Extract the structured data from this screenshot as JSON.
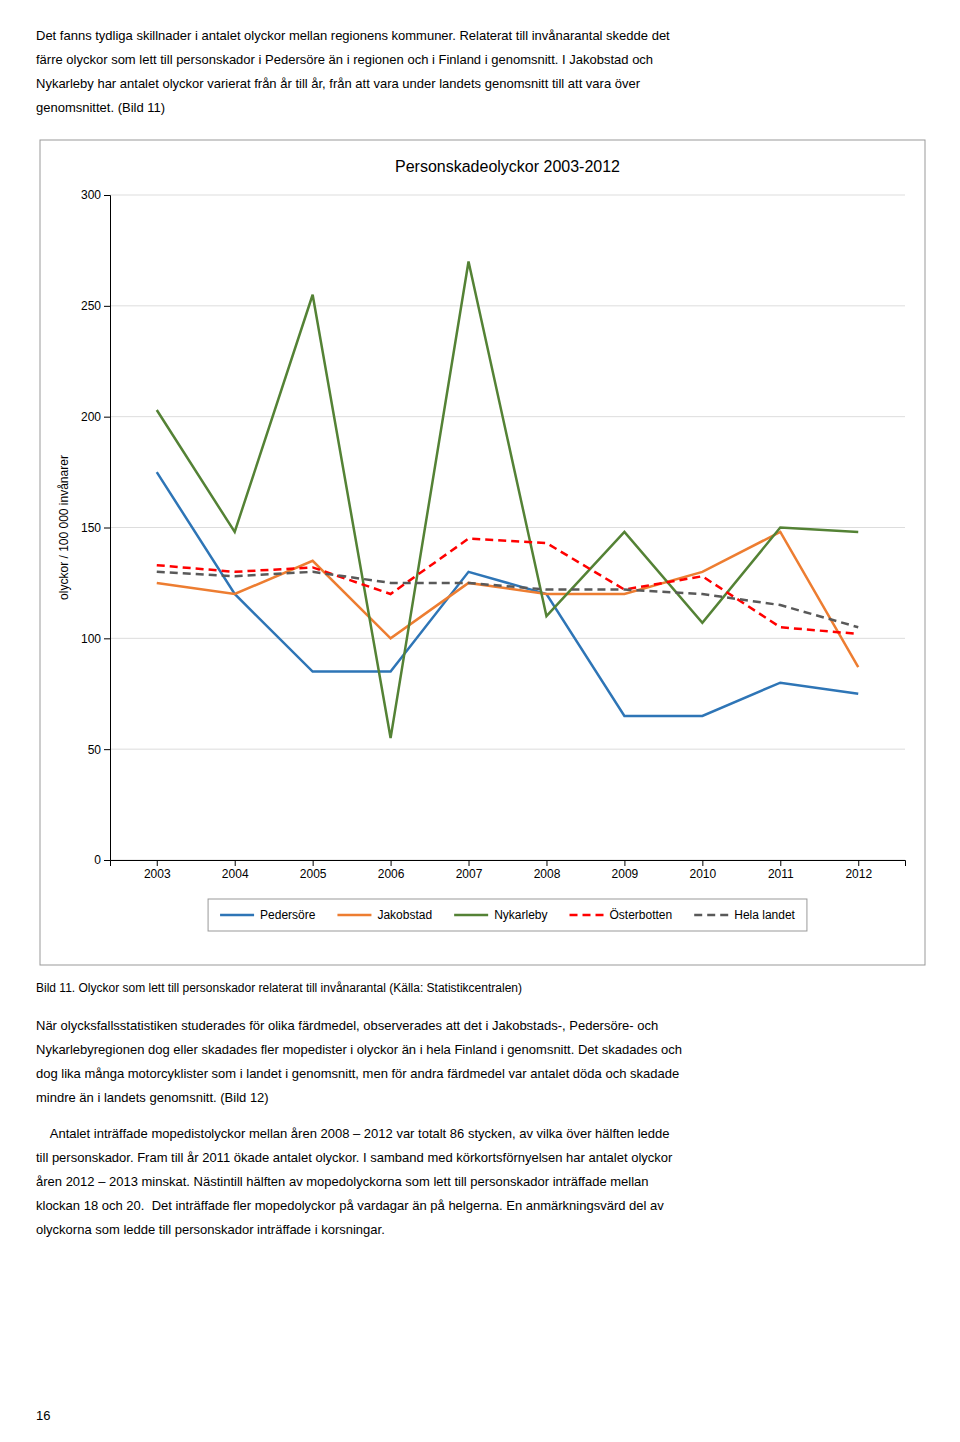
{
  "text_above": [
    "Det fanns tydliga skillnader i antalet olyckor mellan regionens kommuner. Relaterat till invånarantal skedde det",
    "färre olyckor som lett till personskador i Pedersöre än i regionen och i Finland i genomsnitt. I Jakobstad och",
    "Nykarleby har antalet olyckor varierat från år till år, från att vara under landets genomsnitt till att vara över",
    "genomsnittet. (Bild 11)"
  ],
  "chart_data": {
    "type": "line",
    "title": "Personskadeolyckor 2003-2012",
    "ylabel": "olyckor / 100 000 invånarer",
    "x": [
      2003,
      2004,
      2005,
      2006,
      2007,
      2008,
      2009,
      2010,
      2011,
      2012
    ],
    "xlim": [
      2002.4,
      2012.6
    ],
    "xticks": [
      2003,
      2004,
      2005,
      2006,
      2007,
      2008,
      2009,
      2010,
      2011,
      2012
    ],
    "ylim": [
      0,
      300
    ],
    "yticks": [
      0,
      50,
      100,
      150,
      200,
      250,
      300
    ],
    "grid": true,
    "series": [
      {
        "name": "Pedersöre",
        "color": "#2E75B6",
        "line_style": "solid",
        "values": [
          175,
          120,
          85,
          85,
          130,
          120,
          65,
          65,
          80,
          75
        ]
      },
      {
        "name": "Jakobstad",
        "color": "#ED7D31",
        "line_style": "solid",
        "values": [
          125,
          120,
          135,
          100,
          125,
          120,
          120,
          130,
          148,
          87
        ]
      },
      {
        "name": "Nykarleby",
        "color": "#548235",
        "line_style": "solid",
        "values": [
          203,
          148,
          255,
          55,
          270,
          110,
          148,
          107,
          150,
          148
        ]
      },
      {
        "name": "Österbotten",
        "color": "#FF0000",
        "line_style": "dashed",
        "values": [
          133,
          130,
          132,
          120,
          145,
          143,
          122,
          128,
          105,
          102
        ]
      },
      {
        "name": "Hela landet",
        "color": "#595959",
        "line_style": "dashed",
        "values": [
          130,
          128,
          130,
          125,
          125,
          122,
          122,
          120,
          115,
          105
        ]
      }
    ]
  },
  "caption": "Bild 11. Olyckor som lett till personskador relaterat till invånarantal (Källa: Statistikcentralen)",
  "text_below": [
    [
      "När olycksfallsstatistiken studerades för olika färdmedel, observerades att det i Jakobstads-, Pedersöre- och",
      "Nykarlebyregionen dog eller skadades fler mopedister i olyckor än i hela Finland i genomsnitt. Det skadades och",
      "dog lika många motorcyklister som i landet i genomsnitt, men för andra färdmedel var antalet döda och skadade",
      "mindre än i landets genomsnitt. (Bild 12)"
    ],
    [
      "    Antalet inträffade mopedistolyckor mellan åren 2008 – 2012 var totalt 86 stycken, av vilka över hälften ledde",
      "till personskador. Fram till år 2011 ökade antalet olyckor. I samband med körkortsförnyelsen har antalet olyckor",
      "åren 2012 – 2013 minskat. Nästintill hälften av mopedolyckorna som lett till personskador inträffade mellan",
      "klockan 18 och 20.  Det inträffade fler mopedolyckor på vardagar än på helgerna. En anmärkningsvärd del av",
      "olyckorna som ledde till personskador inträffade i korsningar."
    ]
  ],
  "page_number": "16"
}
